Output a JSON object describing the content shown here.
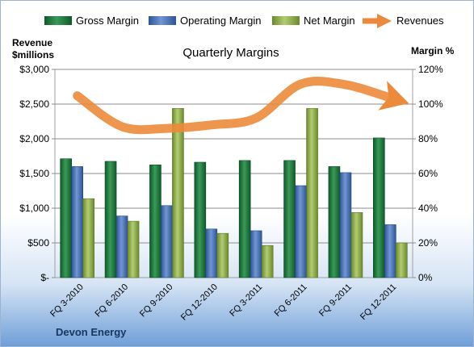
{
  "company": "Devon Energy",
  "chart_data": {
    "type": "bar",
    "title": "Quarterly Margins",
    "categories": [
      "FQ 3-2010",
      "FQ 6-2010",
      "FQ 9-2010",
      "FQ 12-2010",
      "FQ 3-2011",
      "FQ 6-2011",
      "FQ 9-2011",
      "FQ 12-2011"
    ],
    "series": [
      {
        "name": "Gross Margin",
        "axis": "right",
        "values": [
          68.5,
          67,
          65,
          66.5,
          67.5,
          67.5,
          64,
          80.5
        ],
        "color": "#1e7a3e"
      },
      {
        "name": "Operating Margin",
        "axis": "right",
        "values": [
          64,
          35.5,
          41.5,
          28,
          27,
          53,
          60.5,
          30.5
        ],
        "color": "#4a72b8"
      },
      {
        "name": "Net Margin",
        "axis": "right",
        "values": [
          45.5,
          32.5,
          97.5,
          25.5,
          18.5,
          97.5,
          37.5,
          20
        ],
        "color": "#8fae4a"
      },
      {
        "name": "Revenues",
        "type": "line",
        "axis": "left",
        "values": [
          2620,
          2175,
          2150,
          2200,
          2300,
          2790,
          2780,
          2590
        ],
        "color": "#ec8a3b"
      }
    ],
    "ylabel_left": "Revenue\n$millions",
    "ylabel_left_lines": [
      "Revenue",
      "$millions"
    ],
    "ylabel_right": "Margin %",
    "ylim_left": [
      0,
      3000
    ],
    "ylim_right": [
      0,
      120
    ],
    "yticks_left": [
      "$-",
      "$500",
      "$1,000",
      "$1,500",
      "$2,000",
      "$2,500",
      "$3,000"
    ],
    "yticks_right": [
      "0%",
      "20%",
      "40%",
      "60%",
      "80%",
      "100%",
      "120%"
    ],
    "grid": true,
    "legend_position": "top"
  }
}
